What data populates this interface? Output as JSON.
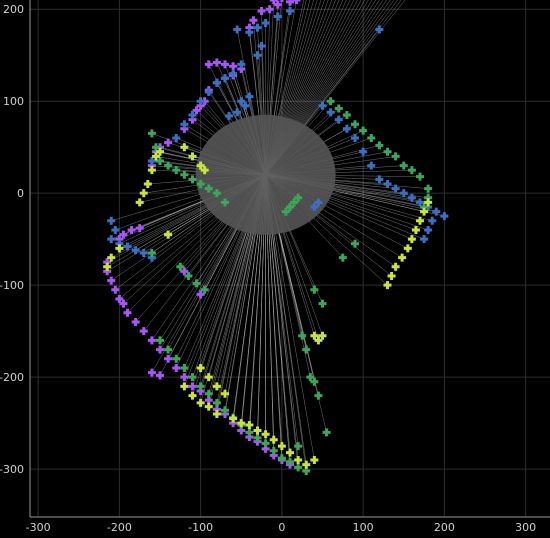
{
  "chart_data": {
    "type": "scatter",
    "title": "",
    "xlabel": "",
    "ylabel": "",
    "xlim": [
      -310,
      330
    ],
    "ylim": [
      -352,
      210
    ],
    "xticks": [
      -300,
      -200,
      -100,
      0,
      100,
      200,
      300
    ],
    "yticks": [
      200,
      100,
      0,
      -100,
      -200,
      -300
    ],
    "grid": true,
    "colors": {
      "background": "#000000",
      "grid": "#2e2e2e",
      "axis": "#9a9a9a",
      "rays": "#cfcfcf",
      "sensor_blob": "#555555",
      "tick_text": "#d0d0d0"
    },
    "sensor_origin": [
      -20,
      20
    ],
    "series": [
      {
        "color": "#a855f7",
        "points": [
          [
            -10,
            210
          ],
          [
            0,
            212
          ],
          [
            10,
            208
          ],
          [
            18,
            210
          ],
          [
            -5,
            205
          ],
          [
            -15,
            200
          ],
          [
            -25,
            198
          ],
          [
            -35,
            188
          ],
          [
            -40,
            180
          ],
          [
            -50,
            135
          ],
          [
            -60,
            128
          ],
          [
            -70,
            125
          ],
          [
            -80,
            120
          ],
          [
            -90,
            112
          ],
          [
            -95,
            100
          ],
          [
            -100,
            95
          ],
          [
            -105,
            90
          ],
          [
            -110,
            80
          ],
          [
            -120,
            70
          ],
          [
            -140,
            55
          ],
          [
            -150,
            50
          ],
          [
            -155,
            45
          ],
          [
            -160,
            30
          ],
          [
            -200,
            -50
          ],
          [
            -195,
            -45
          ],
          [
            -185,
            -40
          ],
          [
            -175,
            -38
          ],
          [
            -215,
            -75
          ],
          [
            -215,
            -85
          ],
          [
            -210,
            -95
          ],
          [
            -205,
            -105
          ],
          [
            -200,
            -115
          ],
          [
            -195,
            -120
          ],
          [
            -190,
            -130
          ],
          [
            -180,
            -140
          ],
          [
            -170,
            -150
          ],
          [
            -160,
            -160
          ],
          [
            -150,
            -170
          ],
          [
            -140,
            -180
          ],
          [
            -130,
            -190
          ],
          [
            -120,
            -200
          ],
          [
            -110,
            -210
          ],
          [
            -100,
            -215
          ],
          [
            -90,
            -225
          ],
          [
            -80,
            -235
          ],
          [
            -70,
            -240
          ],
          [
            -60,
            -250
          ],
          [
            -50,
            -258
          ],
          [
            -40,
            -265
          ],
          [
            -30,
            -270
          ],
          [
            -20,
            -278
          ],
          [
            -10,
            -285
          ],
          [
            0,
            -290
          ],
          [
            10,
            -295
          ],
          [
            -90,
            140
          ],
          [
            -80,
            142
          ],
          [
            -70,
            140
          ],
          [
            -60,
            138
          ],
          [
            -160,
            -195
          ],
          [
            -150,
            -198
          ],
          [
            -100,
            -110
          ],
          [
            -120,
            -85
          ]
        ]
      },
      {
        "color": "#3a6fc4",
        "points": [
          [
            30,
            222
          ],
          [
            10,
            198
          ],
          [
            -5,
            192
          ],
          [
            -20,
            185
          ],
          [
            -30,
            180
          ],
          [
            -40,
            175
          ],
          [
            -55,
            178
          ],
          [
            -25,
            160
          ],
          [
            -30,
            150
          ],
          [
            -50,
            140
          ],
          [
            -60,
            130
          ],
          [
            -70,
            125
          ],
          [
            -80,
            120
          ],
          [
            -90,
            110
          ],
          [
            -100,
            100
          ],
          [
            -110,
            85
          ],
          [
            -120,
            75
          ],
          [
            -130,
            60
          ],
          [
            -150,
            45
          ],
          [
            -160,
            35
          ],
          [
            -210,
            -30
          ],
          [
            -205,
            -40
          ],
          [
            -210,
            -50
          ],
          [
            -200,
            -55
          ],
          [
            -190,
            -58
          ],
          [
            -180,
            -62
          ],
          [
            -170,
            -65
          ],
          [
            -160,
            -70
          ],
          [
            -50,
            100
          ],
          [
            -40,
            105
          ],
          [
            -45,
            95
          ],
          [
            -55,
            88
          ],
          [
            -65,
            84
          ],
          [
            120,
            178
          ],
          [
            50,
            95
          ],
          [
            60,
            88
          ],
          [
            70,
            80
          ],
          [
            80,
            70
          ],
          [
            90,
            60
          ],
          [
            100,
            45
          ],
          [
            110,
            30
          ],
          [
            120,
            15
          ],
          [
            130,
            10
          ],
          [
            140,
            5
          ],
          [
            150,
            0
          ],
          [
            160,
            -5
          ],
          [
            170,
            -10
          ],
          [
            180,
            -15
          ],
          [
            190,
            -20
          ],
          [
            200,
            -25
          ],
          [
            185,
            -30
          ],
          [
            180,
            -40
          ],
          [
            175,
            -50
          ],
          [
            45,
            -10
          ],
          [
            40,
            -15
          ]
        ]
      },
      {
        "color": "#3aa65a",
        "points": [
          [
            60,
            100
          ],
          [
            70,
            92
          ],
          [
            80,
            85
          ],
          [
            90,
            75
          ],
          [
            100,
            68
          ],
          [
            110,
            60
          ],
          [
            120,
            52
          ],
          [
            130,
            45
          ],
          [
            140,
            40
          ],
          [
            150,
            30
          ],
          [
            160,
            25
          ],
          [
            170,
            18
          ],
          [
            180,
            5
          ],
          [
            180,
            -5
          ],
          [
            175,
            -15
          ],
          [
            20,
            -5
          ],
          [
            15,
            -10
          ],
          [
            10,
            -15
          ],
          [
            5,
            -20
          ],
          [
            -125,
            -80
          ],
          [
            -115,
            -90
          ],
          [
            -105,
            -98
          ],
          [
            -95,
            -105
          ],
          [
            -150,
            -160
          ],
          [
            -140,
            -170
          ],
          [
            -130,
            -180
          ],
          [
            -120,
            -190
          ],
          [
            -110,
            -200
          ],
          [
            -100,
            -210
          ],
          [
            -90,
            -218
          ],
          [
            -80,
            -228
          ],
          [
            -70,
            -236
          ],
          [
            -60,
            -244
          ],
          [
            -50,
            -252
          ],
          [
            -40,
            -260
          ],
          [
            -30,
            -266
          ],
          [
            -20,
            -272
          ],
          [
            -10,
            -280
          ],
          [
            0,
            -288
          ],
          [
            10,
            -292
          ],
          [
            20,
            -298
          ],
          [
            30,
            -302
          ],
          [
            20,
            -275
          ],
          [
            25,
            -155
          ],
          [
            30,
            -170
          ],
          [
            35,
            -200
          ],
          [
            40,
            -205
          ],
          [
            45,
            -220
          ],
          [
            55,
            -260
          ],
          [
            40,
            -105
          ],
          [
            50,
            -120
          ],
          [
            -160,
            65
          ],
          [
            -155,
            50
          ],
          [
            -150,
            35
          ],
          [
            -140,
            30
          ],
          [
            -130,
            25
          ],
          [
            -120,
            20
          ],
          [
            -110,
            15
          ],
          [
            -100,
            10
          ],
          [
            -90,
            5
          ],
          [
            -80,
            0
          ],
          [
            -70,
            -10
          ],
          [
            -140,
            -45
          ],
          [
            -160,
            -65
          ],
          [
            75,
            -70
          ],
          [
            90,
            -55
          ]
        ]
      },
      {
        "color": "#c7e43a",
        "points": [
          [
            130,
            -100
          ],
          [
            135,
            -90
          ],
          [
            140,
            -80
          ],
          [
            148,
            -70
          ],
          [
            155,
            -60
          ],
          [
            160,
            -50
          ],
          [
            165,
            -40
          ],
          [
            170,
            -30
          ],
          [
            175,
            -20
          ],
          [
            180,
            -10
          ],
          [
            -150,
            45
          ],
          [
            -155,
            40
          ],
          [
            -160,
            25
          ],
          [
            -165,
            10
          ],
          [
            -170,
            0
          ],
          [
            -175,
            -10
          ],
          [
            -140,
            -45
          ],
          [
            -210,
            -70
          ],
          [
            -215,
            -80
          ],
          [
            -200,
            -60
          ],
          [
            -120,
            -210
          ],
          [
            -110,
            -220
          ],
          [
            -100,
            -228
          ],
          [
            -90,
            -232
          ],
          [
            -80,
            -240
          ],
          [
            -60,
            -245
          ],
          [
            -50,
            -250
          ],
          [
            -40,
            -252
          ],
          [
            -30,
            -258
          ],
          [
            -20,
            -262
          ],
          [
            -10,
            -268
          ],
          [
            0,
            -275
          ],
          [
            10,
            -282
          ],
          [
            20,
            -290
          ],
          [
            30,
            -295
          ],
          [
            40,
            -290
          ],
          [
            -100,
            -190
          ],
          [
            -90,
            -200
          ],
          [
            -80,
            -210
          ],
          [
            -70,
            -218
          ],
          [
            40,
            -155
          ],
          [
            45,
            -160
          ],
          [
            50,
            -155
          ],
          [
            -120,
            50
          ],
          [
            -110,
            40
          ],
          [
            -100,
            30
          ],
          [
            -95,
            25
          ]
        ]
      }
    ]
  }
}
